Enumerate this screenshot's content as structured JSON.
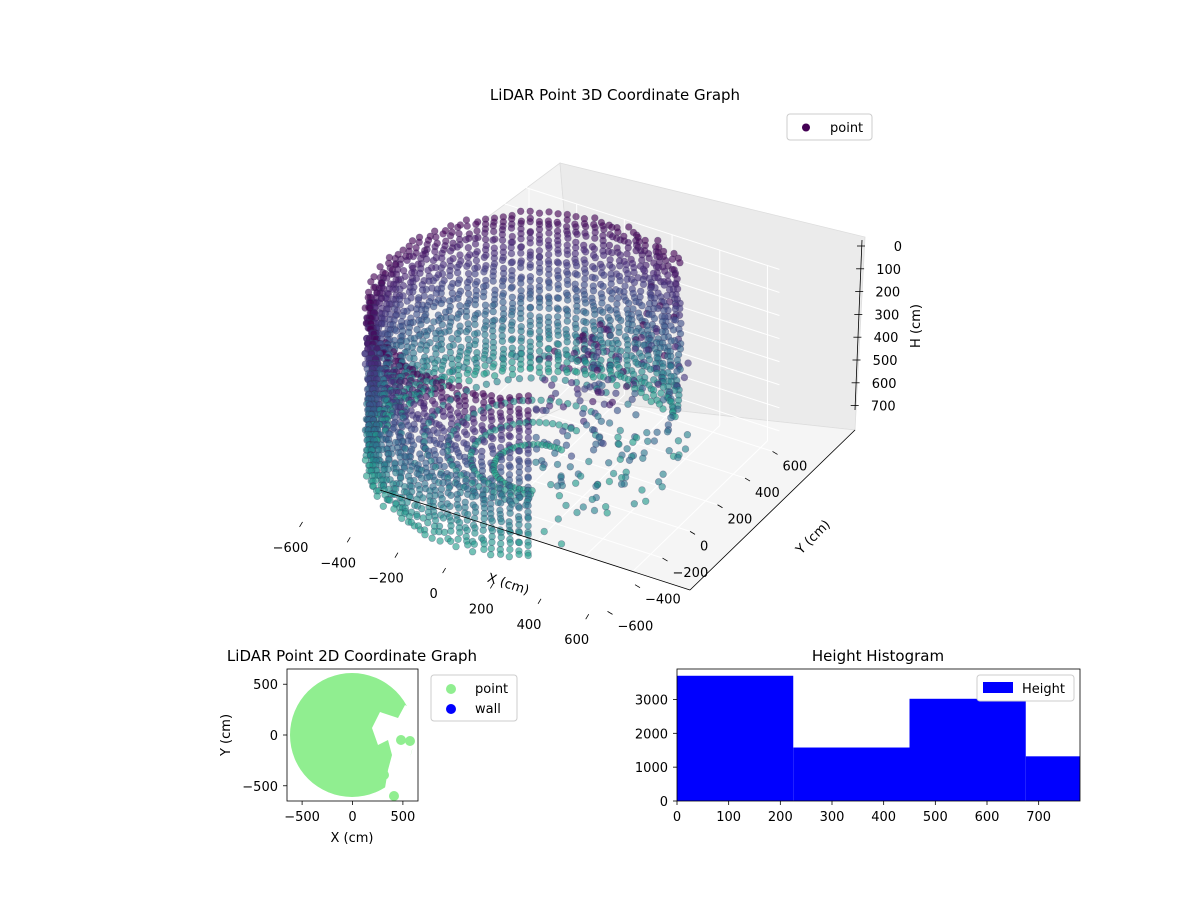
{
  "figure": {
    "background": "#ffffff"
  },
  "chart_data": [
    {
      "type": "scatter",
      "title": "LiDAR Point 3D Coordinate Graph",
      "xlabel": "X (cm)",
      "ylabel": "Y (cm)",
      "zlabel": "H (cm)",
      "xlim": [
        -650,
        650
      ],
      "ylim": [
        -650,
        650
      ],
      "zlim": [
        760,
        0
      ],
      "x_ticks": [
        -600,
        -400,
        -200,
        0,
        200,
        400,
        600
      ],
      "y_ticks": [
        -600,
        -400,
        -200,
        0,
        200,
        400,
        600
      ],
      "z_ticks": [
        0,
        100,
        200,
        300,
        400,
        500,
        600,
        700
      ],
      "z_inverted": true,
      "colormap": "viridis",
      "grid": true,
      "legend": {
        "placement": "upper-right",
        "entries": [
          {
            "label": "point",
            "color": "#440154"
          }
        ]
      },
      "series": [
        {
          "name": "point",
          "description": "cylindrical point cloud, radius ~600 cm, heights 0-700 cm, colored by height",
          "radius": 600,
          "h_min": 0,
          "h_max": 700,
          "open_sector_deg": [
            -30,
            60
          ]
        }
      ]
    },
    {
      "type": "scatter",
      "title": "LiDAR Point 2D Coordinate Graph",
      "xlabel": "X (cm)",
      "ylabel": "Y (cm)",
      "xlim": [
        -650,
        650
      ],
      "ylim": [
        -650,
        650
      ],
      "x_ticks": [
        -500,
        0,
        500
      ],
      "y_ticks": [
        -500,
        0,
        500
      ],
      "legend": {
        "placement": "outside-right",
        "entries": [
          {
            "label": "point",
            "color": "#90ee90"
          },
          {
            "label": "wall",
            "color": "#0000ff"
          }
        ]
      },
      "series": [
        {
          "name": "point",
          "color": "#90ee90",
          "description": "filled disc of points, radius ~620 cm"
        },
        {
          "name": "wall",
          "color": "#0000ff",
          "values": []
        }
      ]
    },
    {
      "type": "bar",
      "title": "Height Histogram",
      "xlabel": "",
      "ylabel": "",
      "xlim": [
        0,
        780
      ],
      "ylim": [
        0,
        3900
      ],
      "x_ticks": [
        0,
        100,
        200,
        300,
        400,
        500,
        600,
        700
      ],
      "y_ticks": [
        0,
        1000,
        2000,
        3000
      ],
      "bins": [
        {
          "from": 0,
          "to": 225,
          "count": 3700
        },
        {
          "from": 225,
          "to": 450,
          "count": 1580
        },
        {
          "from": 450,
          "to": 675,
          "count": 3020
        },
        {
          "from": 675,
          "to": 780,
          "count": 1320
        }
      ],
      "bar_color": "#0000ff",
      "legend": {
        "placement": "upper-right",
        "entries": [
          {
            "label": "Height",
            "color": "#0000ff"
          }
        ]
      }
    }
  ]
}
